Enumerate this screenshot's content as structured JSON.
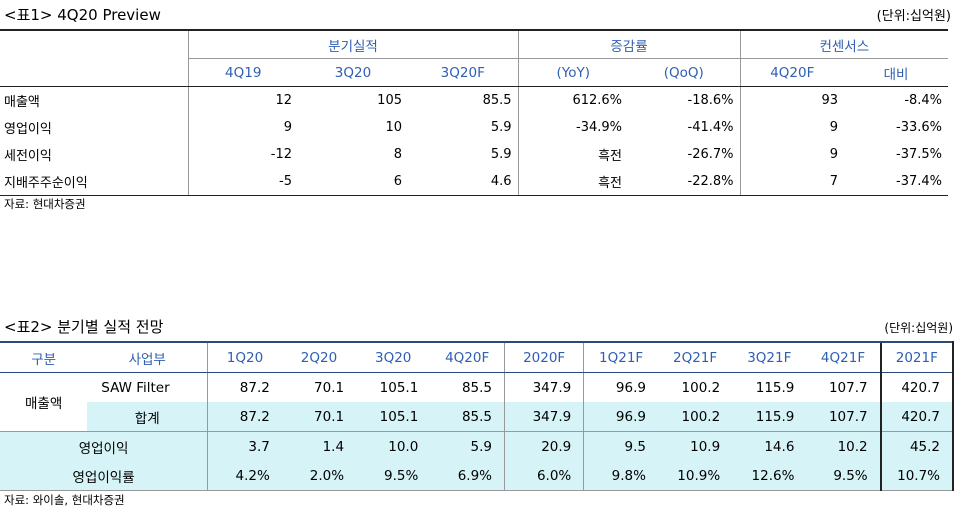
{
  "table1": {
    "title": "<표1> 4Q20 Preview",
    "unit": "(단위:십억원)",
    "groups": [
      "분기실적",
      "증감률",
      "컨센서스"
    ],
    "subheaders": [
      "4Q19",
      "3Q20",
      "3Q20F",
      "(YoY)",
      "(QoQ)",
      "4Q20F",
      "대비"
    ],
    "rows": [
      {
        "label": "매출액",
        "cells": [
          "12",
          "105",
          "85.5",
          "612.6%",
          "-18.6%",
          "93",
          "-8.4%"
        ]
      },
      {
        "label": "영업이익",
        "cells": [
          "9",
          "10",
          "5.9",
          "-34.9%",
          "-41.4%",
          "9",
          "-33.6%"
        ]
      },
      {
        "label": "세전이익",
        "cells": [
          "-12",
          "8",
          "5.9",
          "흑전",
          "-26.7%",
          "9",
          "-37.5%"
        ]
      },
      {
        "label": "지배주주순이익",
        "cells": [
          "-5",
          "6",
          "4.6",
          "흑전",
          "-22.8%",
          "7",
          "-37.4%"
        ]
      }
    ],
    "source": "자료: 현대차증권"
  },
  "table2": {
    "title": "<표2> 분기별 실적 전망",
    "unit": "(단위:십억원)",
    "headers": [
      "구분",
      "사업부",
      "1Q20",
      "2Q20",
      "3Q20",
      "4Q20F",
      "2020F",
      "1Q21F",
      "2Q21F",
      "3Q21F",
      "4Q21F",
      "2021F"
    ],
    "sales_label": "매출액",
    "rows": [
      {
        "sub": "SAW Filter",
        "cells": [
          "87.2",
          "70.1",
          "105.1",
          "85.5",
          "347.9",
          "96.9",
          "100.2",
          "115.9",
          "107.7",
          "420.7"
        ]
      },
      {
        "sub": "합계",
        "cells": [
          "87.2",
          "70.1",
          "105.1",
          "85.5",
          "347.9",
          "96.9",
          "100.2",
          "115.9",
          "107.7",
          "420.7"
        ]
      },
      {
        "label": "영업이익",
        "cells": [
          "3.7",
          "1.4",
          "10.0",
          "5.9",
          "20.9",
          "9.5",
          "10.9",
          "14.6",
          "10.2",
          "45.2"
        ]
      },
      {
        "label": "영업이익률",
        "cells": [
          "4.2%",
          "2.0%",
          "9.5%",
          "6.9%",
          "6.0%",
          "9.8%",
          "10.9%",
          "12.6%",
          "9.5%",
          "10.7%"
        ]
      }
    ],
    "source": "자료: 와이솔, 현대차증권"
  }
}
